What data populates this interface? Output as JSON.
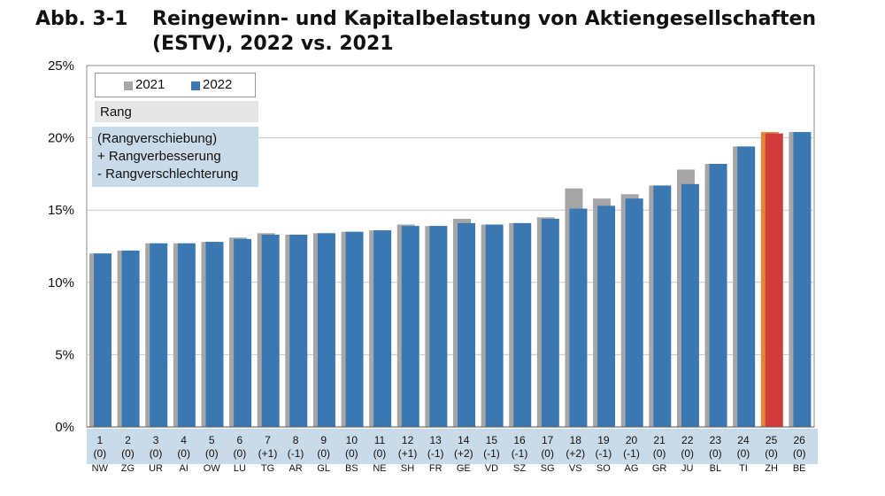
{
  "header": {
    "fig_label": "Abb. 3-1",
    "title": "Reingewinn- und Kapitalbelastung von Aktiengesellschaften (ESTV), 2022 vs. 2021"
  },
  "legend": {
    "series_2021": "2021",
    "series_2022": "2022"
  },
  "annotation": {
    "rang": "Rang",
    "line1": "(Rangverschiebung)",
    "line2": "+ Rangverbesserung",
    "line3": "- Rangverschlechterung"
  },
  "colors": {
    "bar_2021": "#a6a6a6",
    "bar_2022": "#3b78b1",
    "highlight_2021": "#e0873a",
    "highlight_2022": "#d13b3b",
    "label_band": "#c9dbe9"
  },
  "chart_data": {
    "type": "bar",
    "title": "Reingewinn- und Kapitalbelastung von Aktiengesellschaften (ESTV), 2022 vs. 2021",
    "xlabel": "",
    "ylabel": "",
    "ylim": [
      0,
      25
    ],
    "yticks": [
      "0%",
      "5%",
      "10%",
      "15%",
      "20%",
      "25%"
    ],
    "grid": true,
    "legend_position": "top-left",
    "categories": [
      "NW",
      "ZG",
      "UR",
      "AI",
      "OW",
      "LU",
      "TG",
      "AR",
      "GL",
      "BS",
      "NE",
      "SH",
      "FR",
      "GE",
      "VD",
      "SZ",
      "SG",
      "VS",
      "SO",
      "AG",
      "GR",
      "JU",
      "BL",
      "TI",
      "ZH",
      "BE"
    ],
    "ranks": [
      "1",
      "2",
      "3",
      "4",
      "5",
      "6",
      "7",
      "8",
      "9",
      "10",
      "11",
      "12",
      "13",
      "14",
      "15",
      "16",
      "17",
      "18",
      "19",
      "20",
      "21",
      "22",
      "23",
      "24",
      "25",
      "26"
    ],
    "rank_changes": [
      "(0)",
      "(0)",
      "(0)",
      "(0)",
      "(0)",
      "(0)",
      "(+1)",
      "(-1)",
      "(0)",
      "(0)",
      "(0)",
      "(+1)",
      "(-1)",
      "(+2)",
      "(-1)",
      "(-1)",
      "(0)",
      "(+2)",
      "(-1)",
      "(-1)",
      "(0)",
      "(0)",
      "(0)",
      "(0)",
      "(0)",
      "(0)"
    ],
    "highlight_category": "ZH",
    "series": [
      {
        "name": "2021",
        "values": [
          12.0,
          12.2,
          12.7,
          12.7,
          12.8,
          13.1,
          13.4,
          13.3,
          13.4,
          13.5,
          13.6,
          14.0,
          13.9,
          14.4,
          14.0,
          14.1,
          14.5,
          16.5,
          15.8,
          16.1,
          16.7,
          17.8,
          18.2,
          19.4,
          20.4,
          20.4
        ]
      },
      {
        "name": "2022",
        "values": [
          12.0,
          12.2,
          12.7,
          12.7,
          12.8,
          13.0,
          13.3,
          13.3,
          13.4,
          13.5,
          13.6,
          13.9,
          13.9,
          14.1,
          14.0,
          14.1,
          14.4,
          15.1,
          15.3,
          15.8,
          16.7,
          16.8,
          18.2,
          19.4,
          20.3,
          20.4
        ]
      }
    ]
  }
}
